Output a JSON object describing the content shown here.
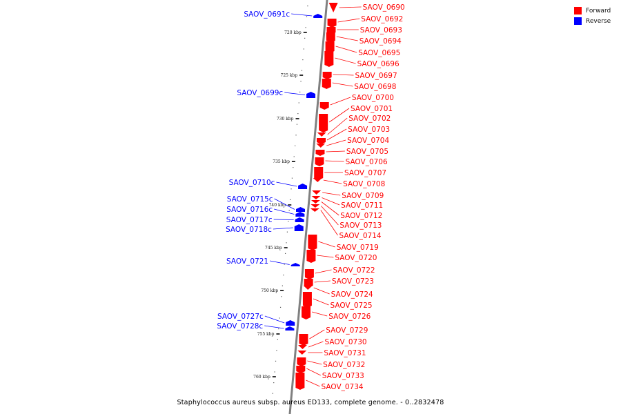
{
  "colors": {
    "forward": "#ff0000",
    "reverse": "#0000ff",
    "backbone": "#808080"
  },
  "legend": [
    {
      "label": "Forward",
      "color": "#ff0000"
    },
    {
      "label": "Reverse",
      "color": "#0000ff"
    }
  ],
  "scale_ticks": [
    "720 kbp",
    "725 kbp",
    "730 kbp",
    "735 kbp",
    "740 kbp",
    "745 kbp",
    "750 kbp",
    "755 kbp",
    "760 kbp"
  ],
  "forward_genes": [
    "SAOV_0690",
    "SAOV_0692",
    "SAOV_0693",
    "SAOV_0694",
    "SAOV_0695",
    "SAOV_0696",
    "SAOV_0697",
    "SAOV_0698",
    "SAOV_0700",
    "SAOV_0701",
    "SAOV_0702",
    "SAOV_0703",
    "SAOV_0704",
    "SAOV_0705",
    "SAOV_0706",
    "SAOV_0707",
    "SAOV_0708",
    "SAOV_0709",
    "SAOV_0711",
    "SAOV_0712",
    "SAOV_0713",
    "SAOV_0714",
    "SAOV_0719",
    "SAOV_0720",
    "SAOV_0722",
    "SAOV_0723",
    "SAOV_0724",
    "SAOV_0725",
    "SAOV_0726",
    "SAOV_0729",
    "SAOV_0730",
    "SAOV_0731",
    "SAOV_0732",
    "SAOV_0733",
    "SAOV_0734"
  ],
  "reverse_genes": [
    "SAOV_0691c",
    "SAOV_0699c",
    "SAOV_0710c",
    "SAOV_0715c",
    "SAOV_0716c",
    "SAOV_0717c",
    "SAOV_0718c",
    "SAOV_0721",
    "SAOV_0727c",
    "SAOV_0728c"
  ],
  "caption": "Staphylococcus aureus subsp. aureus ED133, complete genome. - 0..2832478"
}
